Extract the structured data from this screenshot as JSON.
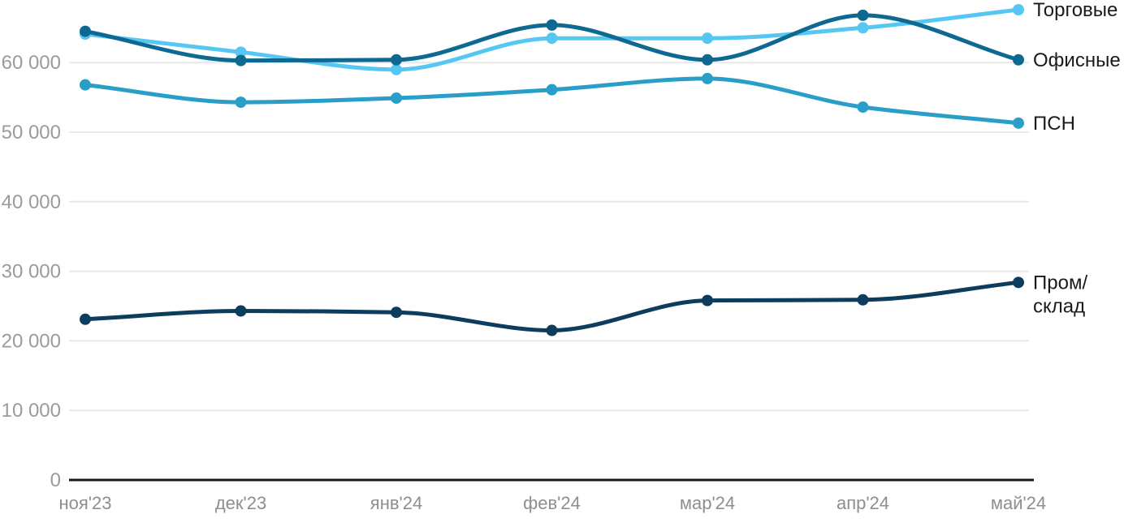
{
  "chart_data": {
    "type": "line",
    "categories": [
      "ноя'23",
      "дек'23",
      "янв'24",
      "фев'24",
      "мар'24",
      "апр'24",
      "май'24"
    ],
    "series": [
      {
        "id": "torgovye",
        "name": "Торговые",
        "label_lines": [
          "Торговые"
        ],
        "color": "#56C7F3",
        "values": [
          64100,
          61500,
          59000,
          63500,
          63500,
          65000,
          67600
        ]
      },
      {
        "id": "ofisnye",
        "name": "Офисные",
        "label_lines": [
          "Офисные"
        ],
        "color": "#0E6992",
        "values": [
          64500,
          60300,
          60400,
          65400,
          60400,
          66800,
          60400
        ]
      },
      {
        "id": "psn",
        "name": "ПСН",
        "label_lines": [
          "ПСН"
        ],
        "color": "#299EC8",
        "values": [
          56800,
          54300,
          54900,
          56100,
          57700,
          53600,
          51300
        ]
      },
      {
        "id": "prom-sklad",
        "name": "Пром/склад",
        "label_lines": [
          "Пром/",
          "склад"
        ],
        "color": "#0D3D5D",
        "values": [
          23100,
          24300,
          24100,
          21500,
          25800,
          25900,
          28400
        ]
      }
    ],
    "y_ticks": [
      {
        "value": 0,
        "label": "0"
      },
      {
        "value": 10000,
        "label": "10 000"
      },
      {
        "value": 20000,
        "label": "20 000"
      },
      {
        "value": 30000,
        "label": "30 000"
      },
      {
        "value": 40000,
        "label": "40 000"
      },
      {
        "value": 50000,
        "label": "50 000"
      },
      {
        "value": 60000,
        "label": "60 000"
      }
    ],
    "ylim": [
      0,
      68500
    ],
    "grid": "horizontal",
    "legend_position": "right",
    "styles": {
      "grid_color": "#E8E8E8",
      "axis_color": "#171717",
      "y_tick_color": "#9B9B9B",
      "x_tick_color": "#8E8E8E",
      "series_label_color": "#1A1A1A",
      "background": "#FFFFFF"
    }
  }
}
